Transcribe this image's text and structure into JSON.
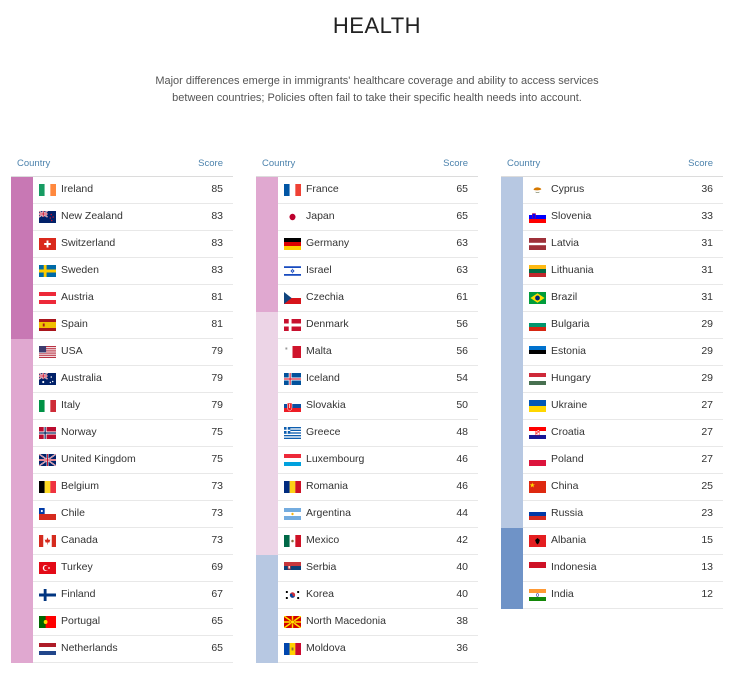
{
  "page": {
    "title": "HEALTH",
    "subtitle_lines": [
      "Major differences emerge in immigrants' healthcare coverage and ability to access services",
      "between countries; Policies often fail to take their specific health needs into account."
    ]
  },
  "table_header": {
    "country": "Country",
    "score": "Score"
  },
  "tiers": {
    "t1": "#c878b4",
    "t2": "#e0a8d0",
    "t3": "#ecd4e6",
    "t4": "#b7c8e2",
    "t5": "#6f93c7"
  },
  "chart_data": {
    "type": "table",
    "columns": [
      "Country",
      "Score"
    ],
    "rows": [
      {
        "country": "Ireland",
        "score": 85,
        "tier": "t1",
        "flag": "ie"
      },
      {
        "country": "New Zealand",
        "score": 83,
        "tier": "t1",
        "flag": "nz"
      },
      {
        "country": "Switzerland",
        "score": 83,
        "tier": "t1",
        "flag": "ch"
      },
      {
        "country": "Sweden",
        "score": 83,
        "tier": "t1",
        "flag": "se"
      },
      {
        "country": "Austria",
        "score": 81,
        "tier": "t1",
        "flag": "at"
      },
      {
        "country": "Spain",
        "score": 81,
        "tier": "t1",
        "flag": "es"
      },
      {
        "country": "USA",
        "score": 79,
        "tier": "t2",
        "flag": "us"
      },
      {
        "country": "Australia",
        "score": 79,
        "tier": "t2",
        "flag": "au"
      },
      {
        "country": "Italy",
        "score": 79,
        "tier": "t2",
        "flag": "it"
      },
      {
        "country": "Norway",
        "score": 75,
        "tier": "t2",
        "flag": "no"
      },
      {
        "country": "United Kingdom",
        "score": 75,
        "tier": "t2",
        "flag": "gb"
      },
      {
        "country": "Belgium",
        "score": 73,
        "tier": "t2",
        "flag": "be"
      },
      {
        "country": "Chile",
        "score": 73,
        "tier": "t2",
        "flag": "cl"
      },
      {
        "country": "Canada",
        "score": 73,
        "tier": "t2",
        "flag": "ca"
      },
      {
        "country": "Turkey",
        "score": 69,
        "tier": "t2",
        "flag": "tr"
      },
      {
        "country": "Finland",
        "score": 67,
        "tier": "t2",
        "flag": "fi"
      },
      {
        "country": "Portugal",
        "score": 65,
        "tier": "t2",
        "flag": "pt"
      },
      {
        "country": "Netherlands",
        "score": 65,
        "tier": "t2",
        "flag": "nl"
      },
      {
        "country": "France",
        "score": 65,
        "tier": "t2",
        "flag": "fr"
      },
      {
        "country": "Japan",
        "score": 65,
        "tier": "t2",
        "flag": "jp"
      },
      {
        "country": "Germany",
        "score": 63,
        "tier": "t2",
        "flag": "de"
      },
      {
        "country": "Israel",
        "score": 63,
        "tier": "t2",
        "flag": "il"
      },
      {
        "country": "Czechia",
        "score": 61,
        "tier": "t2",
        "flag": "cz"
      },
      {
        "country": "Denmark",
        "score": 56,
        "tier": "t3",
        "flag": "dk"
      },
      {
        "country": "Malta",
        "score": 56,
        "tier": "t3",
        "flag": "mt"
      },
      {
        "country": "Iceland",
        "score": 54,
        "tier": "t3",
        "flag": "is"
      },
      {
        "country": "Slovakia",
        "score": 50,
        "tier": "t3",
        "flag": "sk"
      },
      {
        "country": "Greece",
        "score": 48,
        "tier": "t3",
        "flag": "gr"
      },
      {
        "country": "Luxembourg",
        "score": 46,
        "tier": "t3",
        "flag": "lu"
      },
      {
        "country": "Romania",
        "score": 46,
        "tier": "t3",
        "flag": "ro"
      },
      {
        "country": "Argentina",
        "score": 44,
        "tier": "t3",
        "flag": "ar"
      },
      {
        "country": "Mexico",
        "score": 42,
        "tier": "t3",
        "flag": "mx"
      },
      {
        "country": "Serbia",
        "score": 40,
        "tier": "t4",
        "flag": "rs"
      },
      {
        "country": "Korea",
        "score": 40,
        "tier": "t4",
        "flag": "kr"
      },
      {
        "country": "North Macedonia",
        "score": 38,
        "tier": "t4",
        "flag": "mk"
      },
      {
        "country": "Moldova",
        "score": 36,
        "tier": "t4",
        "flag": "md"
      },
      {
        "country": "Cyprus",
        "score": 36,
        "tier": "t4",
        "flag": "cy"
      },
      {
        "country": "Slovenia",
        "score": 33,
        "tier": "t4",
        "flag": "si"
      },
      {
        "country": "Latvia",
        "score": 31,
        "tier": "t4",
        "flag": "lv"
      },
      {
        "country": "Lithuania",
        "score": 31,
        "tier": "t4",
        "flag": "lt"
      },
      {
        "country": "Brazil",
        "score": 31,
        "tier": "t4",
        "flag": "br"
      },
      {
        "country": "Bulgaria",
        "score": 29,
        "tier": "t4",
        "flag": "bg"
      },
      {
        "country": "Estonia",
        "score": 29,
        "tier": "t4",
        "flag": "ee"
      },
      {
        "country": "Hungary",
        "score": 29,
        "tier": "t4",
        "flag": "hu"
      },
      {
        "country": "Ukraine",
        "score": 27,
        "tier": "t4",
        "flag": "ua"
      },
      {
        "country": "Croatia",
        "score": 27,
        "tier": "t4",
        "flag": "hr"
      },
      {
        "country": "Poland",
        "score": 27,
        "tier": "t4",
        "flag": "pl"
      },
      {
        "country": "China",
        "score": 25,
        "tier": "t4",
        "flag": "cn"
      },
      {
        "country": "Russia",
        "score": 23,
        "tier": "t4",
        "flag": "ru"
      },
      {
        "country": "Albania",
        "score": 15,
        "tier": "t5",
        "flag": "al"
      },
      {
        "country": "Indonesia",
        "score": 13,
        "tier": "t5",
        "flag": "id"
      },
      {
        "country": "India",
        "score": 12,
        "tier": "t5",
        "flag": "in"
      }
    ]
  }
}
